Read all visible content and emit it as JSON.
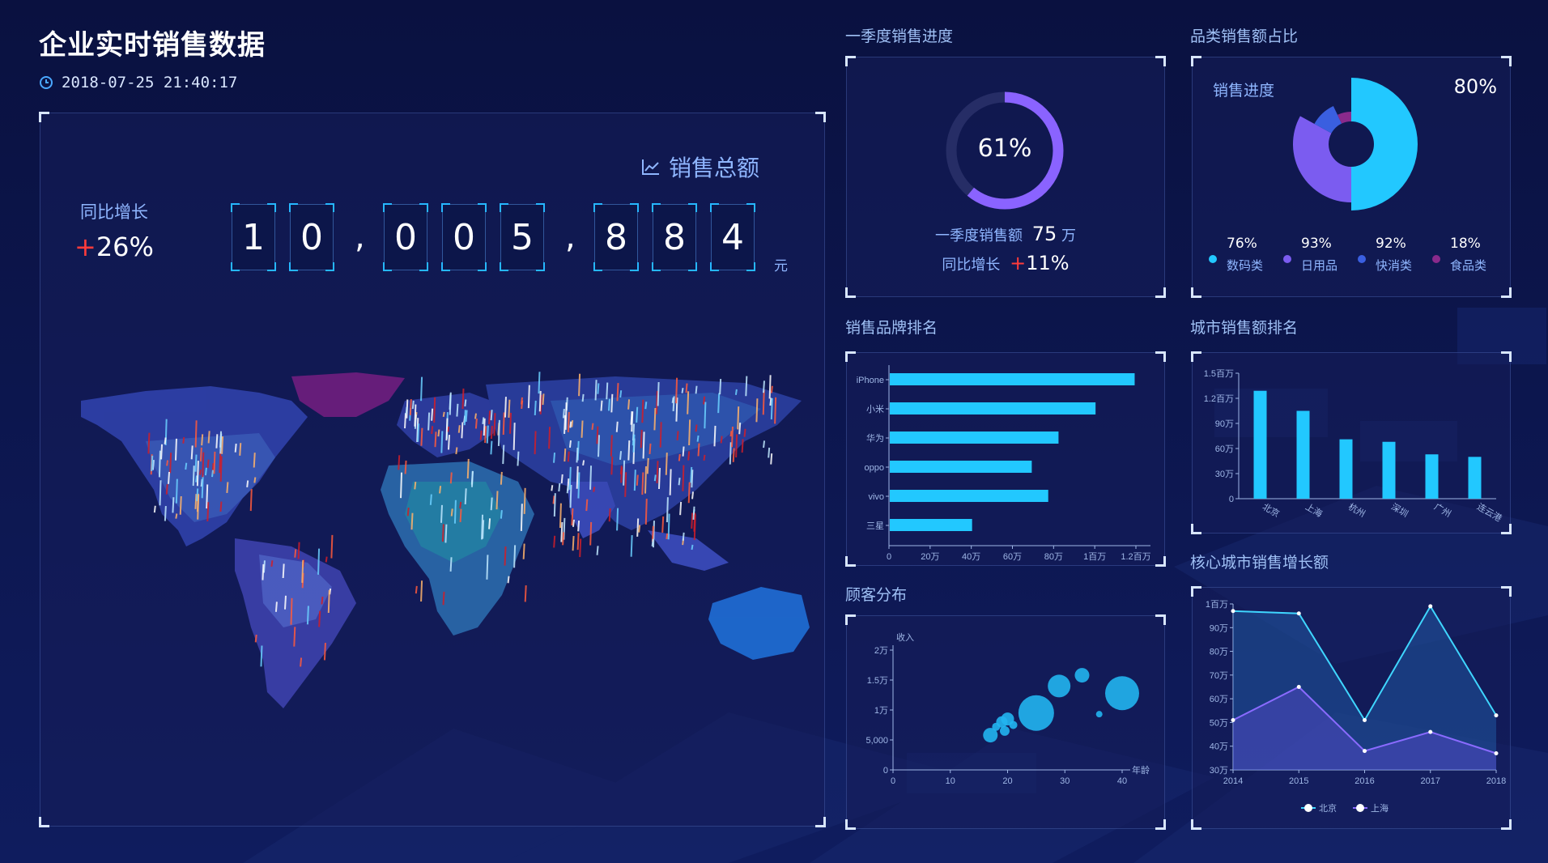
{
  "header": {
    "title": "企业实时销售数据",
    "datetime": "2018-07-25 21:40:17"
  },
  "sales_total": {
    "label": "销售总额",
    "digits": [
      "1",
      "0",
      ",",
      "0",
      "0",
      "5",
      ",",
      "8",
      "8",
      "4"
    ],
    "unit": "元",
    "yoy_label": "同比增长",
    "yoy_value": "+26%",
    "yoy_sign": "+",
    "yoy_number": "26%"
  },
  "q1": {
    "title": "一季度销售进度",
    "percent_label": "61%",
    "percent": 61,
    "sales_label": "一季度销售额",
    "sales_value": "75",
    "sales_unit": "万",
    "yoy_label": "同比增长",
    "yoy_sign": "+",
    "yoy_value": "11%"
  },
  "category": {
    "title": "品类销售额占比",
    "progress_label": "销售进度",
    "progress_value": "80%",
    "items": [
      {
        "pct": "76%",
        "name": "数码类",
        "color": "#22c8ff"
      },
      {
        "pct": "93%",
        "name": "日用品",
        "color": "#7b5cf0"
      },
      {
        "pct": "92%",
        "name": "快消类",
        "color": "#3a5fe0"
      },
      {
        "pct": "18%",
        "name": "食品类",
        "color": "#8a2a8c"
      }
    ],
    "chart_data": {
      "type": "pie",
      "slices": [
        {
          "name": "数码类",
          "value": 50
        },
        {
          "name": "日用品",
          "value": 33
        },
        {
          "name": "快消类",
          "value": 10
        },
        {
          "name": "食品类",
          "value": 7
        }
      ]
    }
  },
  "brand": {
    "title": "销售品牌排名",
    "chart_data": {
      "type": "bar",
      "orientation": "horizontal",
      "categories": [
        "iPhone",
        "小米",
        "华为",
        "oppo",
        "vivo",
        "三星"
      ],
      "values": [
        1190000,
        1000000,
        820000,
        690000,
        770000,
        400000
      ],
      "xlim": [
        0,
        1200000
      ],
      "xticks": [
        "0",
        "20万",
        "40万",
        "60万",
        "80万",
        "1百万",
        "1.2百万"
      ]
    }
  },
  "city": {
    "title": "城市销售额排名",
    "chart_data": {
      "type": "bar",
      "categories": [
        "北京",
        "上海",
        "杭州",
        "深圳",
        "广州",
        "连云港"
      ],
      "values": [
        1290000,
        1050000,
        710000,
        680000,
        530000,
        500000
      ],
      "ylim": [
        0,
        1500000
      ],
      "yticks": [
        "0",
        "30万",
        "60万",
        "90万",
        "1.2百万",
        "1.5百万"
      ]
    }
  },
  "customer": {
    "title": "顾客分布",
    "chart_data": {
      "type": "scatter",
      "xlabel": "年龄",
      "ylabel": "收入",
      "xlim": [
        0,
        40
      ],
      "ylim": [
        0,
        20000
      ],
      "xticks": [
        "0",
        "10",
        "20",
        "30",
        "40"
      ],
      "yticks": [
        "0",
        "5,000",
        "1万",
        "1.5万",
        "2万"
      ],
      "points": [
        {
          "x": 17,
          "y": 5800,
          "r": 9
        },
        {
          "x": 18,
          "y": 7200,
          "r": 5
        },
        {
          "x": 19,
          "y": 8000,
          "r": 7
        },
        {
          "x": 20,
          "y": 8500,
          "r": 8
        },
        {
          "x": 19.5,
          "y": 6500,
          "r": 6
        },
        {
          "x": 21,
          "y": 7500,
          "r": 5
        },
        {
          "x": 25,
          "y": 9500,
          "r": 22
        },
        {
          "x": 29,
          "y": 14000,
          "r": 14
        },
        {
          "x": 33,
          "y": 15800,
          "r": 9
        },
        {
          "x": 36,
          "y": 9300,
          "r": 4
        },
        {
          "x": 40,
          "y": 12800,
          "r": 21
        }
      ]
    }
  },
  "growth": {
    "title": "核心城市销售增长额",
    "chart_data": {
      "type": "area",
      "x": [
        "2014",
        "2015",
        "2016",
        "2017",
        "2018"
      ],
      "ylim": [
        300000,
        1000000
      ],
      "yticks": [
        "30万",
        "40万",
        "50万",
        "60万",
        "70万",
        "80万",
        "90万",
        "1百万"
      ],
      "series": [
        {
          "name": "北京",
          "values": [
            970000,
            960000,
            510000,
            990000,
            530000
          ],
          "color": "#3fd6ff"
        },
        {
          "name": "上海",
          "values": [
            510000,
            650000,
            380000,
            460000,
            370000
          ],
          "color": "#8a6bff"
        }
      ]
    }
  },
  "colors": {
    "accent": "#22c8ff",
    "purple": "#7b5cf0",
    "bg": "#0b1246",
    "plus": "#ff3b3b"
  }
}
